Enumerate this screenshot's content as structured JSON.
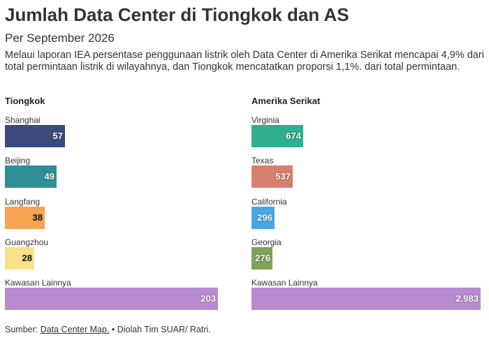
{
  "title": "Jumlah Data Center di Tiongkok dan AS",
  "subtitle": "Per September 2026",
  "description": "Melaui laporan IEA persentase penggunaan listrik oleh Data Center di Amerika Serikat mencapai 4,9% dari total permintaan listrik di wilayahnya, dan Tiongkok mencatatkan proporsi 1,1%. dari total permintaan.",
  "footer": {
    "prefix": "Sumber: ",
    "link": "Data Center Map.",
    "suffix": " • Diolah Tim SUAR/ Ratri."
  },
  "chart_data": [
    {
      "type": "bar",
      "title": "Tiongkok",
      "categories": [
        "Shanghai",
        "Beijing",
        "Langfang",
        "Guangzhou",
        "Kawasan Lainnya"
      ],
      "values": [
        57,
        49,
        38,
        28,
        203
      ],
      "value_labels": [
        "57",
        "49",
        "38",
        "28",
        "203"
      ],
      "colors": [
        "#3b4a7b",
        "#2f8f97",
        "#f7a552",
        "#f9e08b",
        "#b98bd1"
      ],
      "label_light": [
        true,
        true,
        false,
        false,
        true
      ],
      "xlim": [
        0,
        203
      ]
    },
    {
      "type": "bar",
      "title": "Amerika Serikat",
      "categories": [
        "Virginia",
        "Texas",
        "California",
        "Georgia",
        "Kawasan Lainnya"
      ],
      "values": [
        674,
        537,
        296,
        276,
        2983
      ],
      "value_labels": [
        "674",
        "537",
        "296",
        "276",
        "2.983"
      ],
      "colors": [
        "#2fae8e",
        "#d78070",
        "#4ba5e3",
        "#7ea35a",
        "#b98bd1"
      ],
      "label_light": [
        true,
        true,
        true,
        true,
        true
      ],
      "xlim": [
        0,
        2983
      ]
    }
  ]
}
